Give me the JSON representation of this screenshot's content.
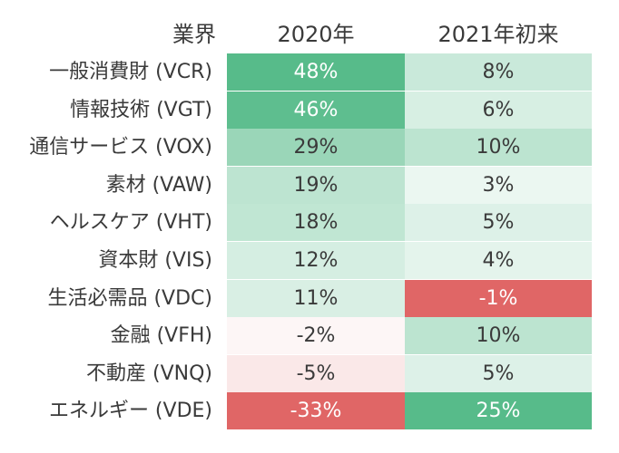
{
  "chart_data": {
    "type": "table",
    "columns": [
      "業界",
      "2020年",
      "2021年初来"
    ],
    "rows": [
      {
        "sector": "一般消費財 (VCR)",
        "y2020": "48%",
        "y2021": "8%",
        "v2020": 48,
        "v2021": 8
      },
      {
        "sector": "情報技術 (VGT)",
        "y2020": "46%",
        "y2021": "6%",
        "v2020": 46,
        "v2021": 6
      },
      {
        "sector": "通信サービス (VOX)",
        "y2020": "29%",
        "y2021": "10%",
        "v2020": 29,
        "v2021": 10
      },
      {
        "sector": "素材 (VAW)",
        "y2020": "19%",
        "y2021": "3%",
        "v2020": 19,
        "v2021": 3
      },
      {
        "sector": "ヘルスケア (VHT)",
        "y2020": "18%",
        "y2021": "5%",
        "v2020": 18,
        "v2021": 5
      },
      {
        "sector": "資本財 (VIS)",
        "y2020": "12%",
        "y2021": "4%",
        "v2020": 12,
        "v2021": 4
      },
      {
        "sector": "生活必需品 (VDC)",
        "y2020": "11%",
        "y2021": "-1%",
        "v2020": 11,
        "v2021": -1
      },
      {
        "sector": "金融 (VFH)",
        "y2020": "-2%",
        "y2021": "10%",
        "v2020": -2,
        "v2021": 10
      },
      {
        "sector": "不動産 (VNQ)",
        "y2020": "-5%",
        "y2021": "5%",
        "v2020": -5,
        "v2021": 5
      },
      {
        "sector": "エネルギー (VDE)",
        "y2020": "-33%",
        "y2021": "25%",
        "v2020": -33,
        "v2021": 25
      }
    ],
    "colors": {
      "positive": "#57bb8a",
      "negative": "#e06666",
      "neutral": "#ffffff"
    }
  }
}
